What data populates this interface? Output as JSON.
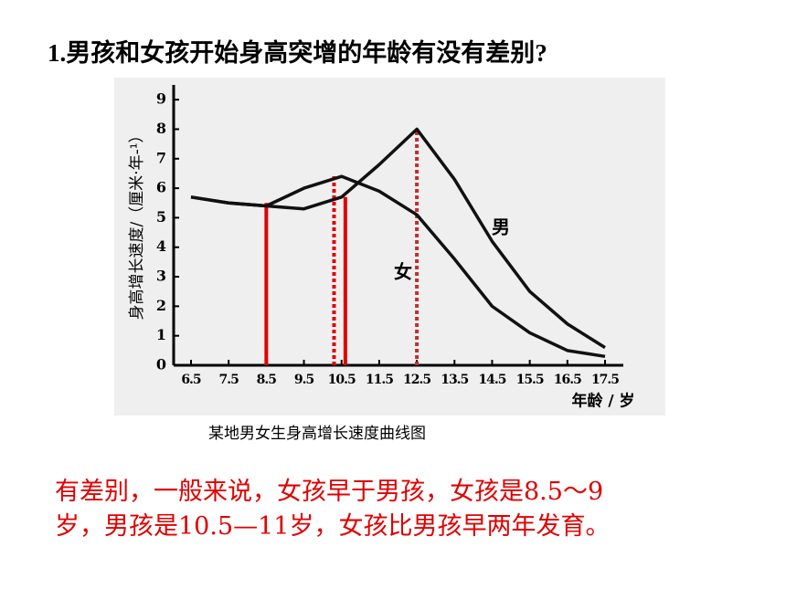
{
  "header": {
    "title": "1.男孩和女孩开始身高突增的年龄有没有差别?"
  },
  "chart_data": {
    "type": "line",
    "x_label": "年龄 / 岁",
    "y_label": "身高增长速度/（厘米·年-¹）",
    "x": [
      6.5,
      7.5,
      8.5,
      9.5,
      10.5,
      11.5,
      12.5,
      13.5,
      14.5,
      15.5,
      16.5,
      17.5
    ],
    "series": [
      {
        "name": "男",
        "color": "#111111",
        "values": [
          5.7,
          5.5,
          5.4,
          5.3,
          5.7,
          6.8,
          8.0,
          6.3,
          4.2,
          2.5,
          1.4,
          0.6
        ]
      },
      {
        "name": "女",
        "color": "#111111",
        "values": [
          5.7,
          5.5,
          5.4,
          6.0,
          6.4,
          5.9,
          5.1,
          3.6,
          2.0,
          1.1,
          0.5,
          0.3
        ]
      }
    ],
    "xlim": [
      6.5,
      17.5
    ],
    "xticks": [
      6.5,
      7.5,
      8.5,
      9.5,
      10.5,
      11.5,
      12.5,
      13.5,
      14.5,
      15.5,
      16.5,
      17.5
    ],
    "ylim": [
      0,
      9.5
    ],
    "yticks": [
      0,
      1,
      2,
      3,
      4,
      5,
      6,
      7,
      8,
      9
    ],
    "reference_lines": [
      {
        "x": 8.5,
        "y": 5.5,
        "style": "solid",
        "color": "#e00000"
      },
      {
        "x": 10.3,
        "y": 6.5,
        "style": "dotted",
        "color": "#e00000"
      },
      {
        "x": 10.6,
        "y": 5.7,
        "style": "solid",
        "color": "#e00000"
      },
      {
        "x": 12.5,
        "y": 8.0,
        "style": "dotted",
        "color": "#c03030"
      }
    ],
    "caption": "某地男女生身高增长速度曲线图"
  },
  "answer": {
    "lines": [
      "有差别，一般来说，女孩早于男孩，女孩是8.5～9",
      "岁，男孩是10.5—11岁，女孩比男孩早两年发育。"
    ]
  }
}
